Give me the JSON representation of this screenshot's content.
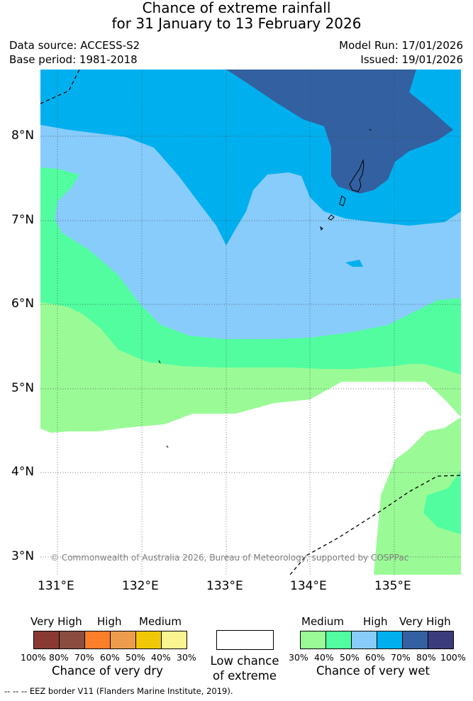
{
  "header": {
    "title_line1": "Chance of extreme rainfall",
    "title_line2": "for 31 January to 13 February 2026",
    "data_source": "Data source: ACCESS-S2",
    "base_period": "Base period: 1981-2018",
    "model_run": "Model Run: 17/01/2026",
    "issued": "Issued: 19/01/2026"
  },
  "map": {
    "lat_labels": [
      "8°N",
      "7°N",
      "6°N",
      "5°N",
      "4°N",
      "3°N"
    ],
    "lon_labels": [
      "131°E",
      "132°E",
      "133°E",
      "134°E",
      "135°E"
    ],
    "copyright": "© Commonwealth of Australia 2026, Bureau of Meteorology, supported by COSPPac",
    "colors": {
      "very_high_wet_80": "#3360a0",
      "very_high_wet_70": "#00b0ee",
      "high_wet_60": "#88ccfc",
      "medium_wet_50": "#52fda0",
      "medium_wet_40": "#9afb96",
      "low": "#ffffff"
    }
  },
  "legend": {
    "dry": {
      "labels": [
        "Very High",
        "High",
        "Medium"
      ],
      "colors": [
        "#8a3a33",
        "#8a4d3f",
        "#fc7e28",
        "#ec9c4c",
        "#f0c808",
        "#fcf490"
      ],
      "ticks": [
        "100%",
        "80%",
        "70%",
        "60%",
        "50%",
        "40%",
        "30%"
      ],
      "title": "Chance of very dry"
    },
    "low": {
      "line1": "Low chance",
      "line2": "of extreme"
    },
    "wet": {
      "labels": [
        "Medium",
        "High",
        "Very High"
      ],
      "colors": [
        "#9afb96",
        "#52fda0",
        "#88ccfc",
        "#00b0ee",
        "#3360a0",
        "#3b3c7e"
      ],
      "ticks": [
        "30%",
        "40%",
        "50%",
        "60%",
        "70%",
        "80%",
        "100%"
      ],
      "title": "Chance of very wet"
    }
  },
  "footnote": "--  --  -- EEZ border V11 (Flanders Marine Institute, 2019)."
}
